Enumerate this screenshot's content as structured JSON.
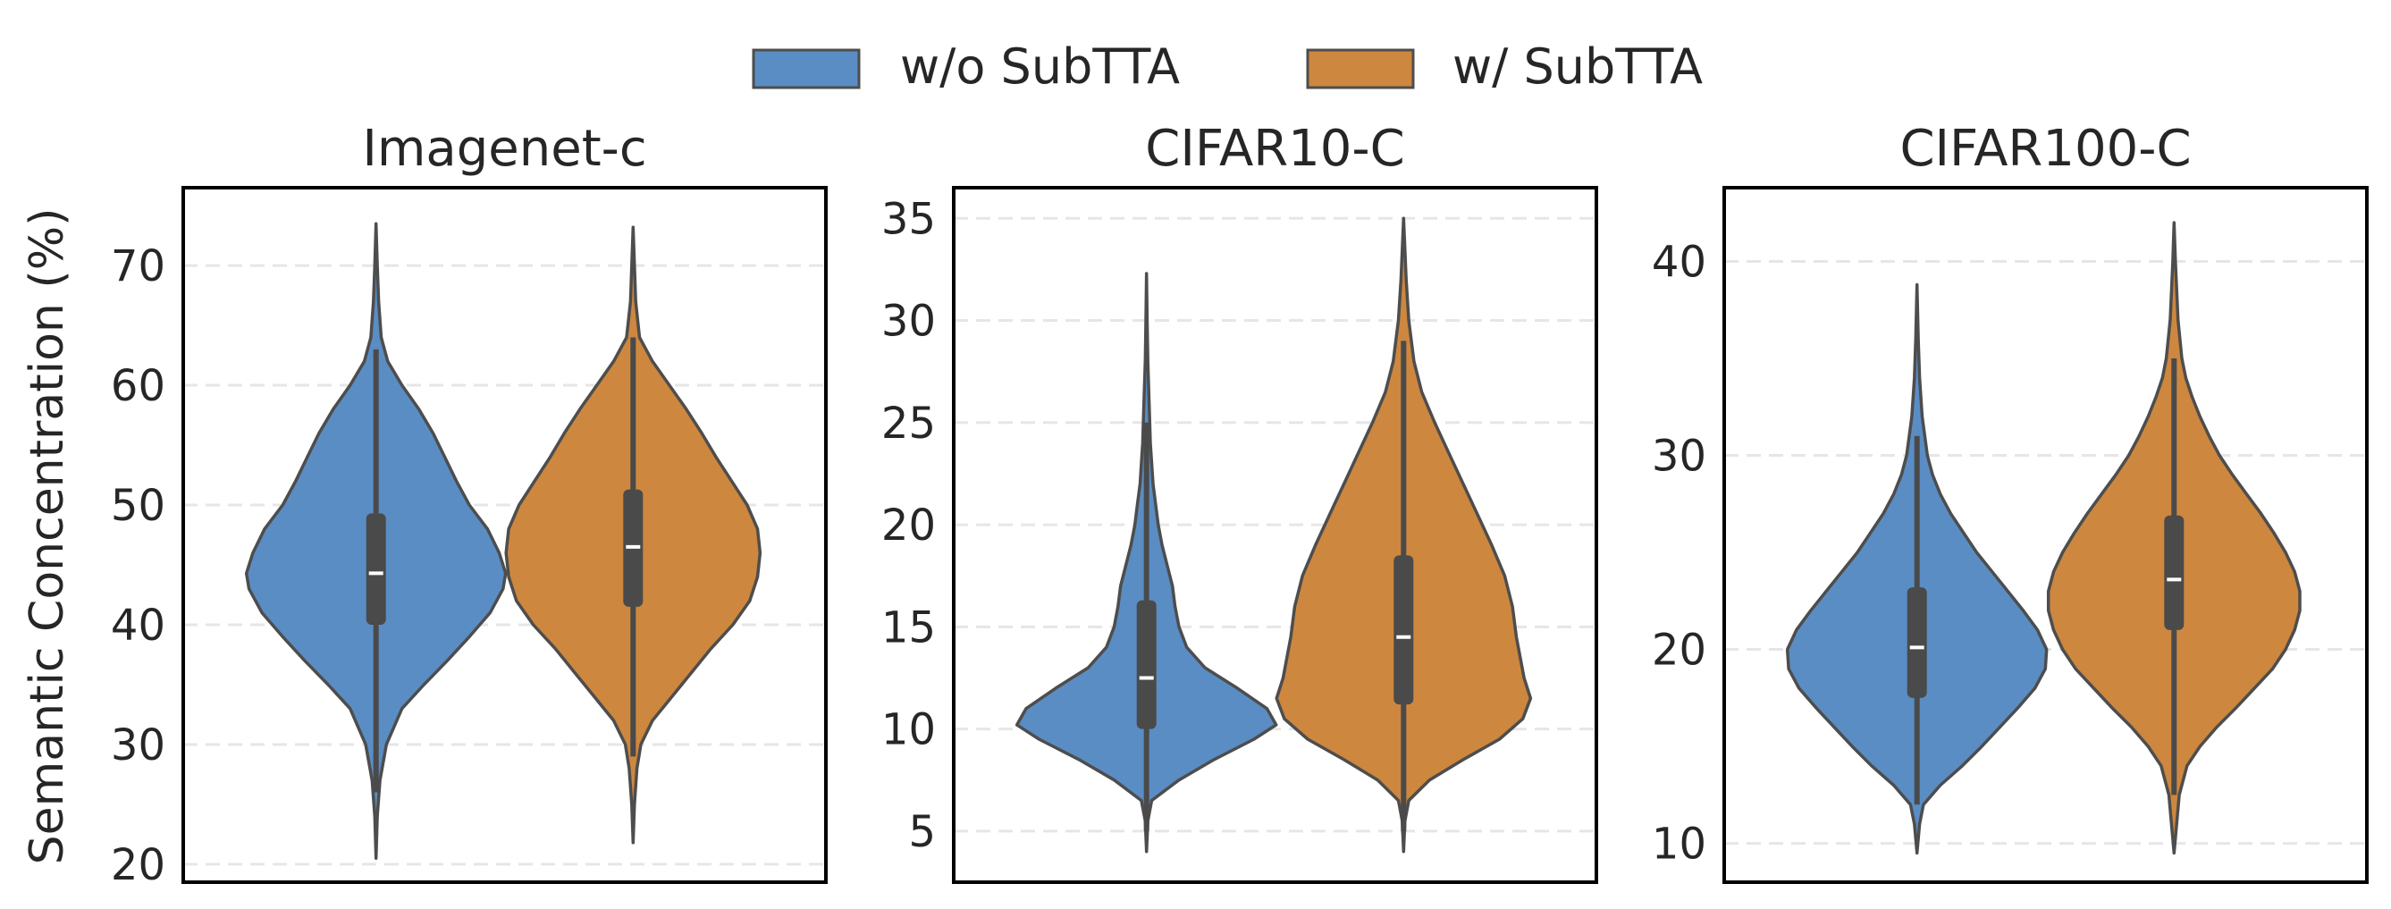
{
  "legend": {
    "placement": "top-center",
    "entries": [
      {
        "label": "w/o SubTTA",
        "color": "#5a8dc4"
      },
      {
        "label": "w/ SubTTA",
        "color": "#cd873e"
      }
    ]
  },
  "ylabel": "Semantic Concentration (%)",
  "colors": {
    "without": "#5a8dc4",
    "with": "#cd873e",
    "outline": "#4d4d4d",
    "box": "#4a4a4a",
    "median": "#ffffff",
    "grid": "#e6e6e6"
  },
  "chart_data": [
    {
      "type": "violin",
      "title": "Imagenet-c",
      "ylim": [
        18.5,
        76.5
      ],
      "yticks": [
        20,
        30,
        40,
        50,
        60,
        70
      ],
      "grid": true,
      "series": [
        {
          "name": "w/o SubTTA",
          "min": 20.5,
          "max": 73.5,
          "q1": 40,
          "median": 44.3,
          "q3": 49.3,
          "whisker_low": 26,
          "whisker_high": 63,
          "density": [
            [
              20.5,
              0.0
            ],
            [
              24,
              0.01
            ],
            [
              27,
              0.03
            ],
            [
              30,
              0.08
            ],
            [
              33,
              0.2
            ],
            [
              35,
              0.37
            ],
            [
              37,
              0.55
            ],
            [
              39,
              0.72
            ],
            [
              41,
              0.88
            ],
            [
              43,
              0.98
            ],
            [
              44.3,
              1.0
            ],
            [
              46,
              0.95
            ],
            [
              48,
              0.86
            ],
            [
              50,
              0.72
            ],
            [
              52,
              0.62
            ],
            [
              54,
              0.53
            ],
            [
              56,
              0.44
            ],
            [
              58,
              0.33
            ],
            [
              60,
              0.2
            ],
            [
              62,
              0.09
            ],
            [
              64,
              0.04
            ],
            [
              67,
              0.02
            ],
            [
              70,
              0.01
            ],
            [
              73.5,
              0.0
            ]
          ]
        },
        {
          "name": "w/ SubTTA",
          "min": 21.8,
          "max": 73.2,
          "q1": 41.5,
          "median": 46.5,
          "q3": 51.3,
          "whisker_low": 29,
          "whisker_high": 64,
          "density": [
            [
              21.8,
              0.0
            ],
            [
              25,
              0.01
            ],
            [
              28,
              0.03
            ],
            [
              30,
              0.06
            ],
            [
              32,
              0.15
            ],
            [
              34,
              0.3
            ],
            [
              36,
              0.45
            ],
            [
              38,
              0.6
            ],
            [
              40,
              0.77
            ],
            [
              42,
              0.9
            ],
            [
              44,
              0.96
            ],
            [
              46,
              0.98
            ],
            [
              48,
              0.96
            ],
            [
              50,
              0.88
            ],
            [
              52,
              0.76
            ],
            [
              54,
              0.64
            ],
            [
              56,
              0.53
            ],
            [
              58,
              0.41
            ],
            [
              60,
              0.28
            ],
            [
              62,
              0.15
            ],
            [
              64,
              0.05
            ],
            [
              67,
              0.02
            ],
            [
              70,
              0.01
            ],
            [
              73.2,
              0.0
            ]
          ]
        }
      ]
    },
    {
      "type": "violin",
      "title": "CIFAR10-C",
      "ylim": [
        2.5,
        36.5
      ],
      "yticks": [
        5,
        10,
        15,
        20,
        25,
        30,
        35
      ],
      "grid": true,
      "series": [
        {
          "name": "w/o SubTTA",
          "min": 4.0,
          "max": 32.3,
          "q1": 10.0,
          "median": 12.5,
          "q3": 16.3,
          "whisker_low": 5,
          "whisker_high": 25,
          "density": [
            [
              4.0,
              0.0
            ],
            [
              5.5,
              0.01
            ],
            [
              6.5,
              0.04
            ],
            [
              7.5,
              0.25
            ],
            [
              8.5,
              0.52
            ],
            [
              9.5,
              0.83
            ],
            [
              10.2,
              1.0
            ],
            [
              11,
              0.93
            ],
            [
              12,
              0.7
            ],
            [
              13,
              0.45
            ],
            [
              14,
              0.31
            ],
            [
              15,
              0.25
            ],
            [
              16,
              0.22
            ],
            [
              17,
              0.2
            ],
            [
              18,
              0.16
            ],
            [
              19,
              0.12
            ],
            [
              20,
              0.09
            ],
            [
              21,
              0.07
            ],
            [
              22,
              0.05
            ],
            [
              24,
              0.03
            ],
            [
              26,
              0.02
            ],
            [
              28,
              0.01
            ],
            [
              30,
              0.005
            ],
            [
              32.3,
              0.0
            ]
          ]
        },
        {
          "name": "w/ SubTTA",
          "min": 4.0,
          "max": 35.0,
          "q1": 11.2,
          "median": 14.5,
          "q3": 18.5,
          "whisker_low": 5,
          "whisker_high": 29,
          "density": [
            [
              4.0,
              0.0
            ],
            [
              5.5,
              0.01
            ],
            [
              6.5,
              0.04
            ],
            [
              7.5,
              0.2
            ],
            [
              8.5,
              0.46
            ],
            [
              9.5,
              0.74
            ],
            [
              10.5,
              0.92
            ],
            [
              11.5,
              0.98
            ],
            [
              12.5,
              0.93
            ],
            [
              13.5,
              0.9
            ],
            [
              14.5,
              0.87
            ],
            [
              16,
              0.84
            ],
            [
              17.5,
              0.78
            ],
            [
              19,
              0.68
            ],
            [
              20.5,
              0.57
            ],
            [
              22,
              0.46
            ],
            [
              23.5,
              0.35
            ],
            [
              25,
              0.24
            ],
            [
              26.5,
              0.14
            ],
            [
              28,
              0.08
            ],
            [
              30,
              0.04
            ],
            [
              32,
              0.02
            ],
            [
              35.0,
              0.0
            ]
          ]
        }
      ]
    },
    {
      "type": "violin",
      "title": "CIFAR100-C",
      "ylim": [
        8.0,
        43.8
      ],
      "yticks": [
        10,
        20,
        30,
        40
      ],
      "grid": true,
      "series": [
        {
          "name": "w/o SubTTA",
          "min": 9.5,
          "max": 38.8,
          "q1": 17.5,
          "median": 20.1,
          "q3": 23.2,
          "whisker_low": 12,
          "whisker_high": 31,
          "density": [
            [
              9.5,
              0.0
            ],
            [
              11,
              0.02
            ],
            [
              12,
              0.05
            ],
            [
              13,
              0.18
            ],
            [
              14,
              0.35
            ],
            [
              15,
              0.5
            ],
            [
              16,
              0.64
            ],
            [
              17,
              0.78
            ],
            [
              18,
              0.91
            ],
            [
              19,
              0.99
            ],
            [
              20,
              1.0
            ],
            [
              21,
              0.93
            ],
            [
              22,
              0.82
            ],
            [
              23,
              0.7
            ],
            [
              24,
              0.58
            ],
            [
              25,
              0.46
            ],
            [
              26,
              0.36
            ],
            [
              27,
              0.26
            ],
            [
              28,
              0.18
            ],
            [
              29,
              0.12
            ],
            [
              30,
              0.08
            ],
            [
              32,
              0.04
            ],
            [
              34,
              0.02
            ],
            [
              36,
              0.01
            ],
            [
              38.8,
              0.0
            ]
          ]
        },
        {
          "name": "w/ SubTTA",
          "min": 9.5,
          "max": 42.0,
          "q1": 21.0,
          "median": 23.6,
          "q3": 26.9,
          "whisker_low": 12.5,
          "whisker_high": 35,
          "density": [
            [
              9.5,
              0.0
            ],
            [
              11,
              0.02
            ],
            [
              12.5,
              0.04
            ],
            [
              14,
              0.1
            ],
            [
              15,
              0.2
            ],
            [
              16,
              0.33
            ],
            [
              17,
              0.48
            ],
            [
              18,
              0.62
            ],
            [
              19,
              0.76
            ],
            [
              20,
              0.86
            ],
            [
              21,
              0.93
            ],
            [
              22,
              0.97
            ],
            [
              23,
              0.97
            ],
            [
              24,
              0.93
            ],
            [
              25,
              0.86
            ],
            [
              26,
              0.77
            ],
            [
              27,
              0.67
            ],
            [
              28,
              0.56
            ],
            [
              29,
              0.45
            ],
            [
              30,
              0.35
            ],
            [
              31,
              0.27
            ],
            [
              32,
              0.2
            ],
            [
              33,
              0.14
            ],
            [
              34,
              0.09
            ],
            [
              35,
              0.06
            ],
            [
              37,
              0.03
            ],
            [
              40,
              0.01
            ],
            [
              42.0,
              0.0
            ]
          ]
        }
      ]
    }
  ]
}
